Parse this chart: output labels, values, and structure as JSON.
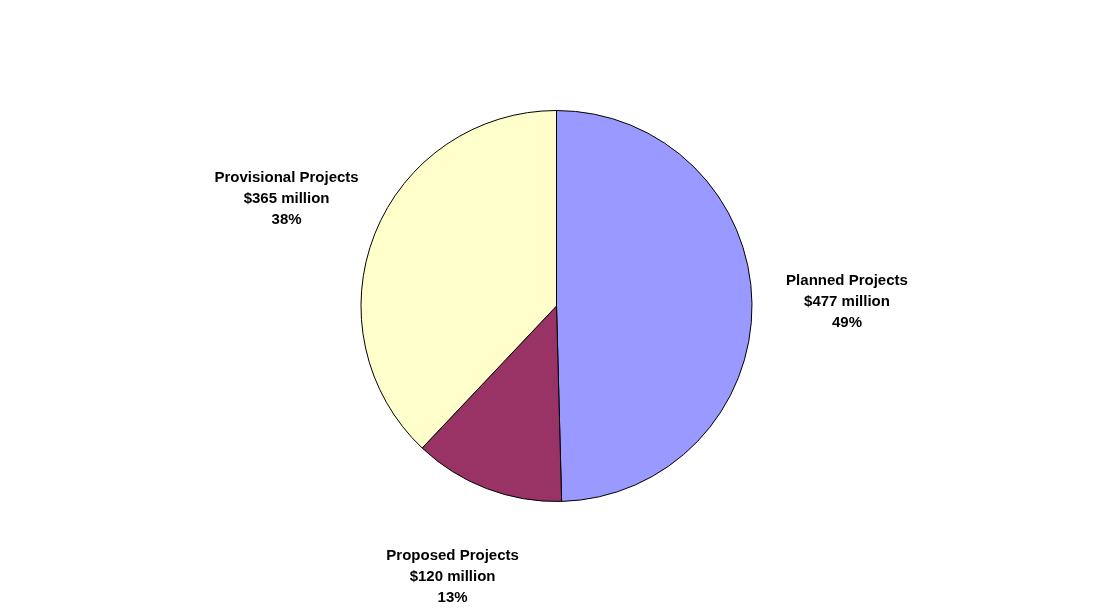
{
  "chart_data": {
    "type": "pie",
    "categories": [
      "Planned Projects",
      "Proposed Projects",
      "Provisional Projects"
    ],
    "values": [
      477,
      120,
      365
    ],
    "colors": [
      "#9999ff",
      "#993366",
      "#ffffcc"
    ],
    "value_labels": [
      "$477 million",
      "$120 million",
      "$365 million"
    ],
    "annotations": [
      "49%",
      "13%",
      "38%"
    ],
    "legend": false
  }
}
